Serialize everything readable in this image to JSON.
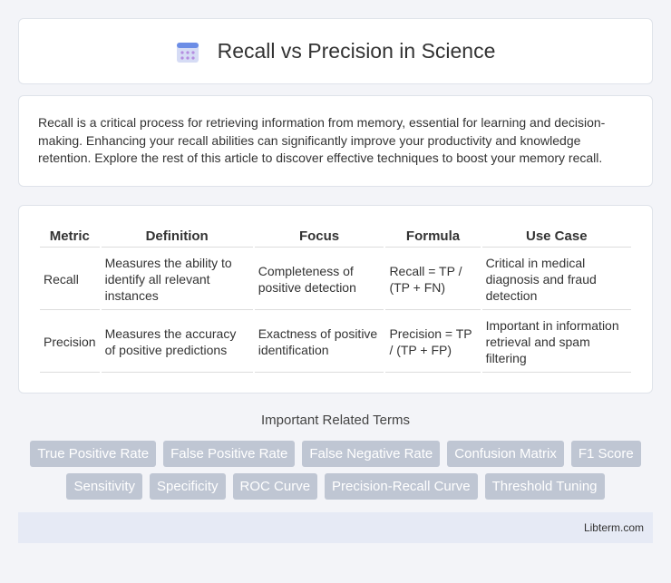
{
  "header": {
    "title": "Recall vs Precision in Science"
  },
  "intro": "Recall is a critical process for retrieving information from memory, essential for learning and decision-making. Enhancing your recall abilities can significantly improve your productivity and knowledge retention. Explore the rest of this article to discover effective techniques to boost your memory recall.",
  "table": {
    "headers": [
      "Metric",
      "Definition",
      "Focus",
      "Formula",
      "Use Case"
    ],
    "rows": [
      [
        "Recall",
        "Measures the ability to identify all relevant instances",
        "Completeness of positive detection",
        "Recall = TP / (TP + FN)",
        "Critical in medical diagnosis and fraud detection"
      ],
      [
        "Precision",
        "Measures the accuracy of positive predictions",
        "Exactness of positive identification",
        "Precision = TP / (TP + FP)",
        "Important in information retrieval and spam filtering"
      ]
    ]
  },
  "related": {
    "title": "Important Related Terms",
    "tags": [
      "True Positive Rate",
      "False Positive Rate",
      "False Negative Rate",
      "Confusion Matrix",
      "F1 Score",
      "Sensitivity",
      "Specificity",
      "ROC Curve",
      "Precision-Recall Curve",
      "Threshold Tuning"
    ]
  },
  "footer": "Libterm.com"
}
